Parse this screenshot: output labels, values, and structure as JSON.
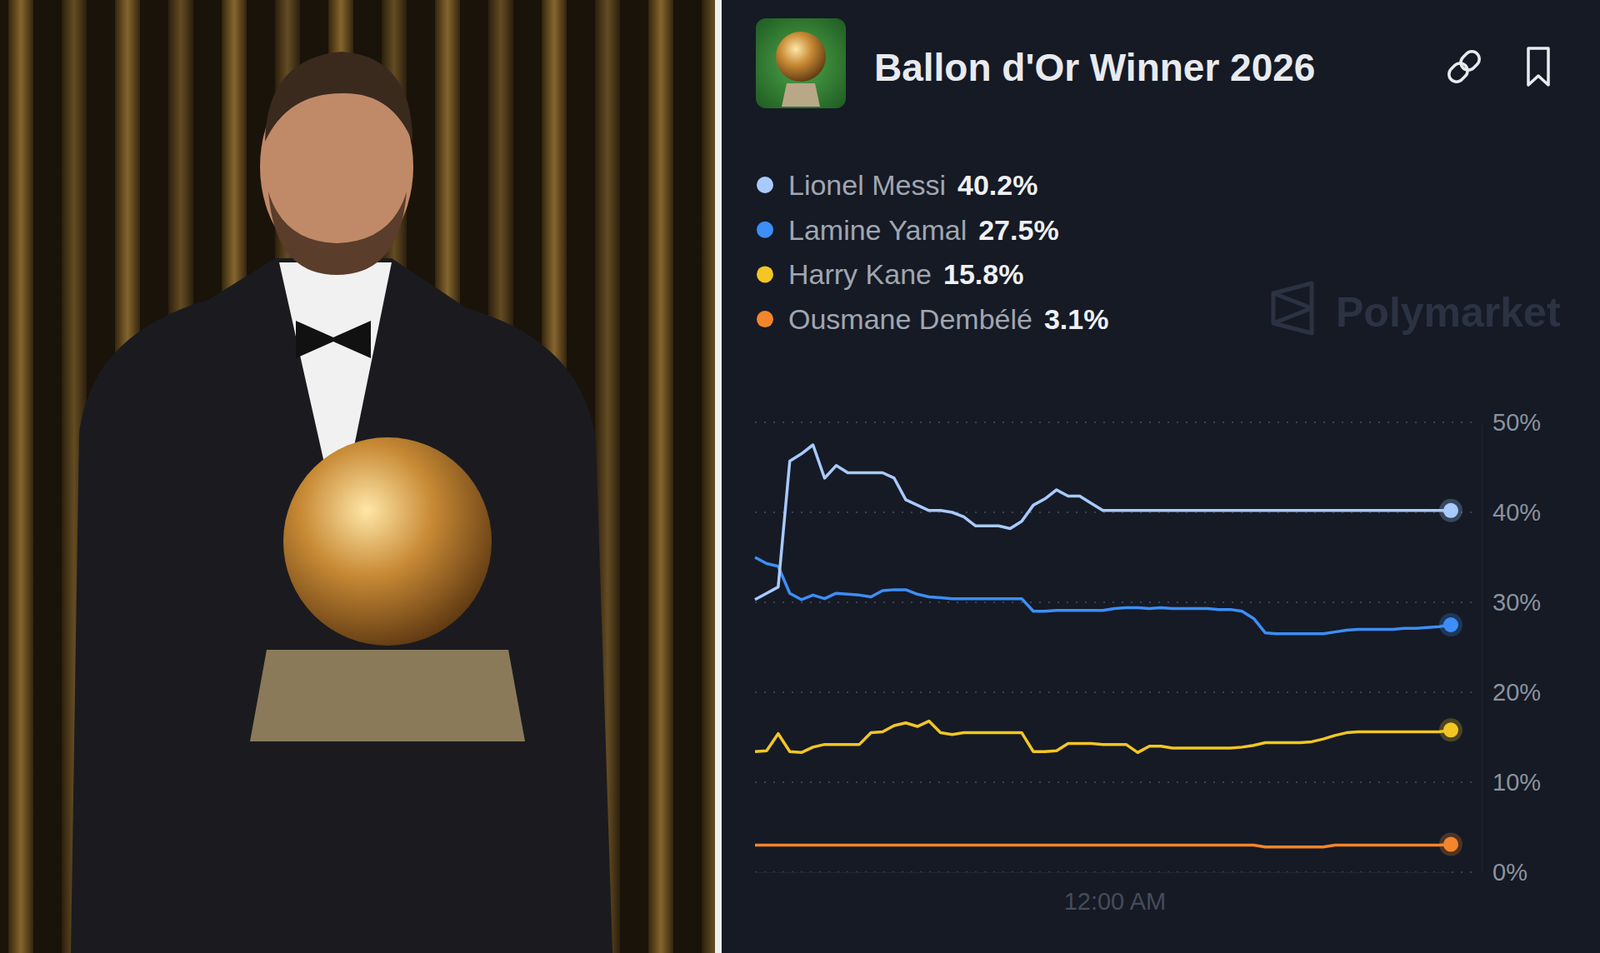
{
  "chart_data": {
    "type": "line",
    "title": "Ballon d'Or Winner 2026",
    "source": "Polymarket",
    "categories": [
      null,
      null,
      null,
      null,
      null,
      null,
      null,
      null,
      null,
      null,
      null,
      null,
      null,
      null,
      null,
      null,
      null,
      null,
      null,
      null,
      null,
      null,
      null,
      null,
      null,
      null,
      null,
      null,
      null,
      null,
      null,
      "12:00 AM",
      null,
      null,
      null,
      null,
      null,
      null,
      null,
      null,
      null,
      null,
      null,
      null,
      null,
      null,
      null,
      null,
      null,
      null,
      null,
      null,
      null,
      null,
      null,
      null,
      null,
      null,
      null,
      null,
      null
    ],
    "series": [
      {
        "name": "Lionel Messi",
        "color": "#a8caff",
        "last_label": "40.2%",
        "values": [
          30.3,
          31.0,
          31.7,
          45.7,
          46.5,
          47.5,
          43.8,
          45.2,
          44.4,
          44.4,
          44.4,
          44.4,
          43.8,
          41.4,
          40.8,
          40.2,
          40.2,
          40.0,
          39.5,
          38.5,
          38.5,
          38.5,
          38.2,
          39.0,
          40.8,
          41.5,
          42.5,
          41.8,
          41.8,
          41.0,
          40.2,
          40.2,
          40.2,
          40.2,
          40.2,
          40.2,
          40.2,
          40.2,
          40.2,
          40.2,
          40.2,
          40.2,
          40.2,
          40.2,
          40.2,
          40.2,
          40.2,
          40.2,
          40.2,
          40.2,
          40.2,
          40.2,
          40.2,
          40.2,
          40.2,
          40.2,
          40.2,
          40.2,
          40.2,
          40.2,
          40.2
        ]
      },
      {
        "name": "Lamine Yamal",
        "color": "#3d8ef7",
        "last_label": "27.5%",
        "values": [
          35.0,
          34.3,
          34.0,
          31.0,
          30.3,
          30.8,
          30.4,
          31.0,
          30.9,
          30.8,
          30.6,
          31.3,
          31.4,
          31.4,
          30.9,
          30.6,
          30.5,
          30.4,
          30.4,
          30.4,
          30.4,
          30.4,
          30.4,
          30.4,
          29.0,
          29.0,
          29.1,
          29.1,
          29.1,
          29.1,
          29.1,
          29.3,
          29.4,
          29.4,
          29.3,
          29.4,
          29.3,
          29.3,
          29.3,
          29.3,
          29.2,
          29.2,
          29.0,
          28.2,
          26.6,
          26.5,
          26.5,
          26.5,
          26.5,
          26.5,
          26.7,
          26.9,
          27.0,
          27.0,
          27.0,
          27.0,
          27.1,
          27.1,
          27.2,
          27.3,
          27.5
        ]
      },
      {
        "name": "Harry Kane",
        "color": "#f4c623",
        "last_label": "15.8%",
        "values": [
          13.4,
          13.5,
          15.4,
          13.4,
          13.3,
          13.9,
          14.2,
          14.2,
          14.2,
          14.2,
          15.5,
          15.6,
          16.3,
          16.6,
          16.2,
          16.8,
          15.5,
          15.3,
          15.5,
          15.5,
          15.5,
          15.5,
          15.5,
          15.5,
          13.4,
          13.4,
          13.5,
          14.3,
          14.3,
          14.3,
          14.2,
          14.2,
          14.2,
          13.3,
          14.0,
          14.0,
          13.8,
          13.8,
          13.8,
          13.8,
          13.8,
          13.8,
          13.9,
          14.1,
          14.4,
          14.4,
          14.4,
          14.4,
          14.5,
          14.8,
          15.2,
          15.5,
          15.6,
          15.6,
          15.6,
          15.6,
          15.6,
          15.6,
          15.6,
          15.6,
          15.8
        ]
      },
      {
        "name": "Ousmane Dembélé",
        "color": "#f5852a",
        "last_label": "3.1%",
        "values": [
          3.0,
          3.0,
          3.0,
          3.0,
          3.0,
          3.0,
          3.0,
          3.0,
          3.0,
          3.0,
          3.0,
          3.0,
          3.0,
          3.0,
          3.0,
          3.0,
          3.0,
          3.0,
          3.0,
          3.0,
          3.0,
          3.0,
          3.0,
          3.0,
          3.0,
          3.0,
          3.0,
          3.0,
          3.0,
          3.0,
          3.0,
          3.0,
          3.0,
          3.0,
          3.0,
          3.0,
          3.0,
          3.0,
          3.0,
          3.0,
          3.0,
          3.0,
          3.0,
          3.0,
          2.8,
          2.8,
          2.8,
          2.8,
          2.8,
          2.8,
          3.0,
          3.0,
          3.0,
          3.0,
          3.0,
          3.0,
          3.0,
          3.0,
          3.0,
          3.0,
          3.1
        ]
      }
    ],
    "ylim": [
      0,
      50
    ],
    "yticks": [
      {
        "value": 0,
        "label": "0%"
      },
      {
        "value": 10,
        "label": "10%"
      },
      {
        "value": 20,
        "label": "20%"
      },
      {
        "value": 30,
        "label": "30%"
      },
      {
        "value": 40,
        "label": "40%"
      },
      {
        "value": 50,
        "label": "50%"
      }
    ],
    "grid": true
  }
}
